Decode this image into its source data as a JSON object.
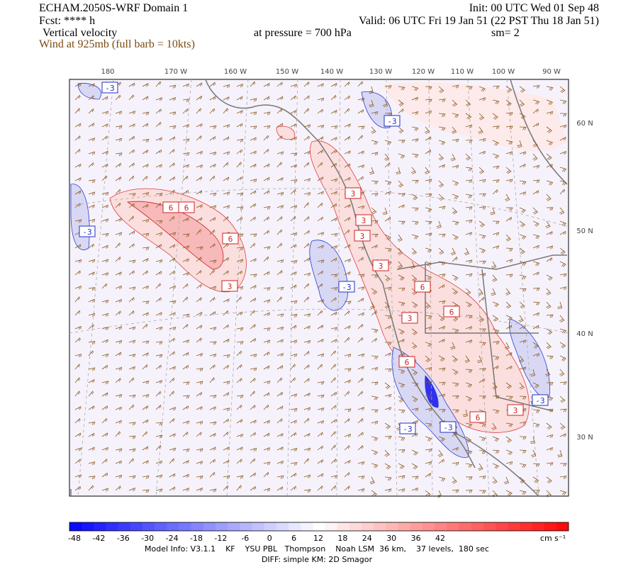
{
  "header": {
    "model": "ECHAM.2050S-WRF Domain 1",
    "init": "Init: 00 UTC Wed 01 Sep 48",
    "fcst": "Fcst: **** h",
    "valid": "Valid: 06 UTC Fri 19 Jan 51 (22 PST Thu 18 Jan 51)",
    "field": "Vertical velocity",
    "pressure": "at pressure =  700 hPa",
    "smooth": "sm= 2",
    "wind": "Wind at 925mb (full barb = 10kts)"
  },
  "map": {
    "lon_labels": [
      "180",
      "170 W",
      "160 W",
      "150 W",
      "140 W",
      "130 W",
      "120 W",
      "110 W",
      "100 W",
      "90 W"
    ],
    "lat_labels": [
      "60 N",
      "50 N",
      "40 N",
      "30 N"
    ],
    "contour_labels": [
      "-3",
      "-3",
      "-3",
      "6",
      "6",
      "6",
      "3",
      "3",
      "-3",
      "3",
      "3",
      "6",
      "6",
      "3",
      "6",
      "-3",
      "-3",
      "6",
      "3",
      "3",
      "-3"
    ]
  },
  "colorbar": {
    "labels": [
      "-48",
      "-42",
      "-36",
      "-30",
      "-24",
      "-18",
      "-12",
      "-6",
      "0",
      "6",
      "12",
      "18",
      "24",
      "30",
      "36",
      "42"
    ],
    "unit": "cm s⁻¹"
  },
  "footer": {
    "model_info": "Model Info: V3.1.1    KF    YSU PBL   Thompson    Noah LSM  36 km,    37 levels,  180 sec",
    "diff": "DIFF: simple KM: 2D Smagor"
  }
}
